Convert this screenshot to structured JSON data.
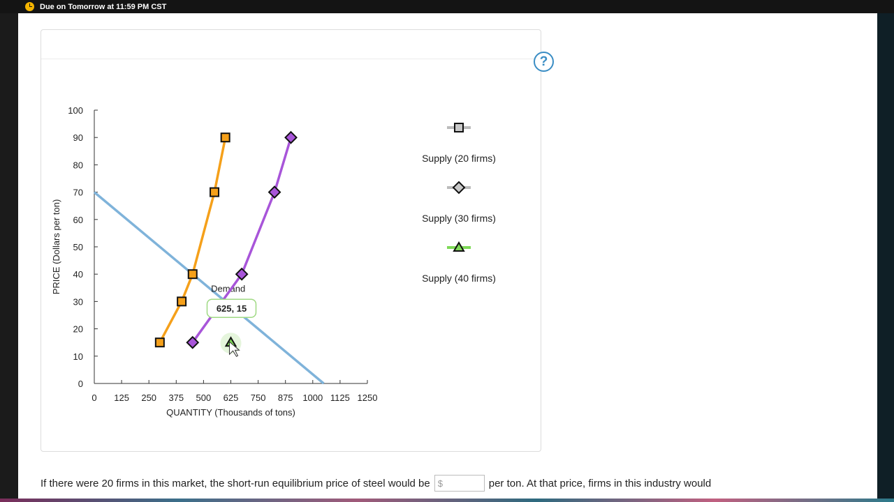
{
  "topbar": {
    "due_text": "Due on Tomorrow at 11:59 PM CST"
  },
  "help": {
    "label": "?"
  },
  "chart_data": {
    "type": "line",
    "xlabel": "QUANTITY (Thousands of tons)",
    "ylabel": "PRICE (Dollars per ton)",
    "xlim": [
      0,
      1250
    ],
    "ylim": [
      0,
      100
    ],
    "xticks": [
      0,
      125,
      250,
      375,
      500,
      625,
      750,
      875,
      1000,
      1125,
      1250
    ],
    "yticks": [
      0,
      10,
      20,
      30,
      40,
      50,
      60,
      70,
      80,
      90,
      100
    ],
    "demand": {
      "name": "Demand",
      "points": [
        [
          0,
          70
        ],
        [
          1050,
          0
        ]
      ]
    },
    "series": [
      {
        "name": "Supply (20 firms)",
        "marker": "square",
        "color": "#f5a01a",
        "points": [
          [
            300,
            15
          ],
          [
            400,
            30
          ],
          [
            450,
            40
          ],
          [
            550,
            70
          ],
          [
            600,
            90
          ]
        ]
      },
      {
        "name": "Supply (30 firms)",
        "marker": "diamond",
        "color": "#a855d9",
        "points": [
          [
            450,
            15
          ],
          [
            675,
            40
          ],
          [
            825,
            70
          ],
          [
            900,
            90
          ]
        ]
      },
      {
        "name": "Supply (40 firms)",
        "marker": "triangle",
        "color": "#7ed957",
        "points": [
          [
            625,
            15
          ]
        ]
      }
    ],
    "legend_placement": "right",
    "tooltip": {
      "text": "625, 15"
    }
  },
  "legend": [
    {
      "label": "Supply (20 firms)",
      "marker": "square"
    },
    {
      "label": "Supply (30 firms)",
      "marker": "diamond"
    },
    {
      "label": "Supply (40 firms)",
      "marker": "triangle"
    }
  ],
  "question": {
    "before": "If there were 20 firms in this market, the short-run equilibrium price of steel would be",
    "placeholder": "$",
    "after": "per ton. At that price, firms in this industry would"
  }
}
